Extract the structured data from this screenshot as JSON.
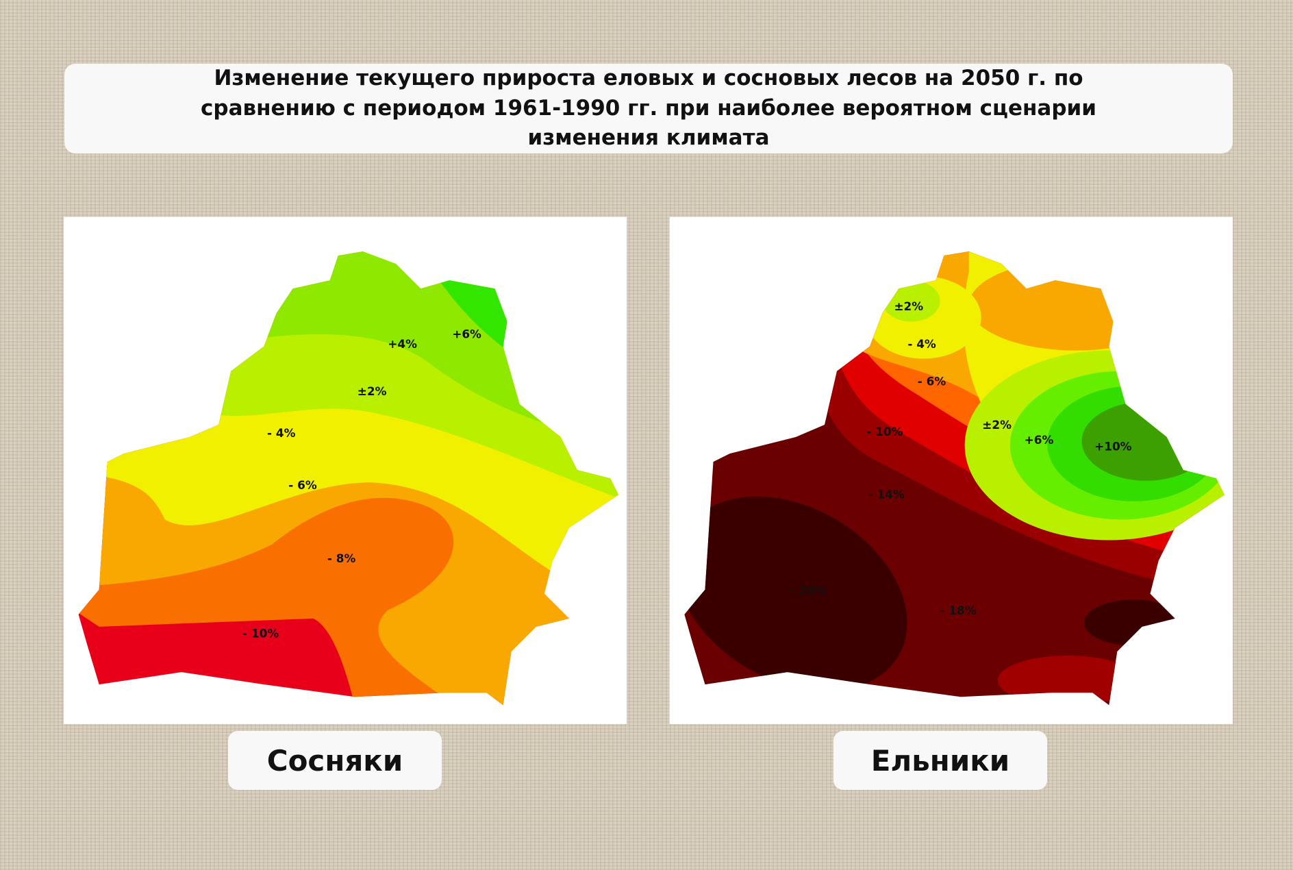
{
  "header": {
    "title": "Изменение текущего прироста еловых и сосновых лесов на 2050 г. по сравнению с периодом 1961-1990 гг. при наиболее вероятном сценарии изменения климата"
  },
  "maps": [
    {
      "label": "Сосняки",
      "contours": [
        "+6%",
        "+4%",
        "±2%",
        "- 4%",
        "- 6%",
        "- 8%",
        "- 10%"
      ]
    },
    {
      "label": "Ельники",
      "contours": [
        "±2%",
        "- 4%",
        "- 6%",
        "- 10%",
        "±2%",
        "+6%",
        "+10%",
        "- 14%",
        "- 20%",
        "- 18%"
      ]
    }
  ]
}
